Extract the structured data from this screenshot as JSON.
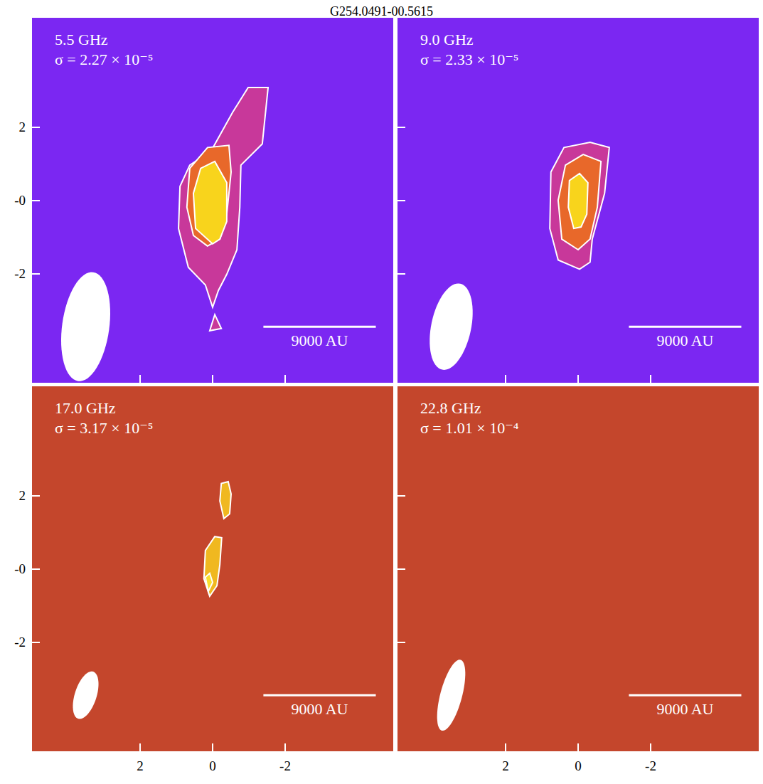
{
  "chart_data": {
    "type": "radio_map",
    "title": "G254.0491-00.5615",
    "xlim": [
      5,
      -5
    ],
    "ylim": [
      -5,
      5
    ],
    "xticks": [
      2,
      0,
      -2
    ],
    "yticks": [
      2,
      {
        "value": 0,
        "label": "-0"
      },
      -2
    ],
    "panels": [
      {
        "label": "5.5 GHz",
        "sigma": {
          "value": 2.27e-05,
          "label": "σ = 2.27 × 10⁻⁵"
        },
        "color": "#7b27f2",
        "tick_labels": "y",
        "beam": {
          "major": 3.0,
          "minor": 1.3,
          "pa": -8
        },
        "scale_bar": {
          "label": "9000 AU",
          "length": 3.1
        },
        "contours": [
          [
            [
              [
                0,
                -2.92
              ],
              [
                0.2,
                -2.31
              ],
              [
                0.67,
                -1.83
              ],
              [
                0.94,
                -0.77
              ],
              [
                0.9,
                0.38
              ],
              [
                0.63,
                0.96
              ],
              [
                0.04,
                1.35
              ],
              [
                -0.55,
                2.4
              ],
              [
                -0.98,
                3.08
              ],
              [
                -1.53,
                3.08
              ],
              [
                -1.37,
                1.54
              ],
              [
                -0.78,
                0.96
              ],
              [
                -0.75,
                -0.19
              ],
              [
                -0.67,
                -1.35
              ],
              [
                -0.39,
                -2.02
              ],
              [
                -0.16,
                -2.46
              ]
            ],
            [
              [
                0.14,
                -1.25
              ],
              [
                0.53,
                -0.96
              ],
              [
                0.71,
                -0.19
              ],
              [
                0.63,
                0.87
              ],
              [
                0.14,
                1.44
              ],
              [
                -0.45,
                1.5
              ],
              [
                -0.51,
                0.77
              ],
              [
                -0.39,
                -0.38
              ],
              [
                -0.2,
                -1.06
              ]
            ],
            [
              [
                0,
                -1.19
              ],
              [
                0.47,
                -0.77
              ],
              [
                0.53,
                0.19
              ],
              [
                0.33,
                0.87
              ],
              [
                -0.06,
                1.06
              ],
              [
                -0.39,
                0.48
              ],
              [
                -0.39,
                -0.58
              ],
              [
                -0.2,
                -1.06
              ]
            ]
          ],
          [
            [
              [
                -0.06,
                -3.12
              ],
              [
                0.08,
                -3.56
              ],
              [
                -0.24,
                -3.5
              ]
            ]
          ]
        ]
      },
      {
        "label": "9.0 GHz",
        "sigma": {
          "value": 2.33e-05,
          "label": "σ = 2.33 × 10⁻⁵"
        },
        "color": "#7b27f2",
        "tick_labels": false,
        "beam": {
          "major": 2.4,
          "minor": 1.1,
          "pa": -12
        },
        "scale_bar": {
          "label": "9000 AU",
          "length": 3.1
        },
        "contours": [
          [
            [
              [
                -0.04,
                -1.88
              ],
              [
                0.55,
                -1.63
              ],
              [
                0.78,
                -0.77
              ],
              [
                0.75,
                0.77
              ],
              [
                0.39,
                1.44
              ],
              [
                -0.33,
                1.58
              ],
              [
                -0.86,
                1.44
              ],
              [
                -0.73,
                0.19
              ],
              [
                -0.39,
                -1.06
              ],
              [
                -0.33,
                -1.69
              ]
            ],
            [
              [
                0,
                -1.35
              ],
              [
                0.45,
                -1.06
              ],
              [
                0.55,
                0
              ],
              [
                0.35,
                0.96
              ],
              [
                -0.14,
                1.25
              ],
              [
                -0.63,
                1.06
              ],
              [
                -0.53,
                -0.19
              ],
              [
                -0.33,
                -1.06
              ]
            ],
            [
              [
                0.12,
                -0.77
              ],
              [
                0.27,
                -0.19
              ],
              [
                0.24,
                0.54
              ],
              [
                -0.04,
                0.73
              ],
              [
                -0.27,
                0.48
              ],
              [
                -0.24,
                -0.38
              ],
              [
                -0.08,
                -0.73
              ]
            ]
          ]
        ]
      },
      {
        "label": "17.0 GHz",
        "sigma": {
          "value": 3.17e-05,
          "label": "σ = 3.17 × 10⁻⁵"
        },
        "color": "#c4462c",
        "beam": {
          "major": 1.35,
          "minor": 0.6,
          "pa": -18
        },
        "scale_bar": {
          "label": "9000 AU",
          "length": 3.1
        },
        "contours": [
          [
            [
              [
                0.08,
                -0.75
              ],
              [
                0.24,
                -0.27
              ],
              [
                0.2,
                0.5
              ],
              [
                -0.06,
                0.88
              ],
              [
                -0.25,
                0.85
              ],
              [
                -0.2,
                0.12
              ],
              [
                -0.12,
                -0.46
              ]
            ],
            [
              [
                0.12,
                -0.62
              ],
              [
                0.2,
                -0.23
              ],
              [
                0.08,
                -0.12
              ],
              [
                0,
                -0.37
              ]
            ]
          ],
          [
            [
              [
                -0.31,
                1.37
              ],
              [
                -0.2,
                1.85
              ],
              [
                -0.24,
                2.33
              ],
              [
                -0.43,
                2.38
              ],
              [
                -0.51,
                2.04
              ],
              [
                -0.47,
                1.5
              ]
            ]
          ]
        ]
      },
      {
        "label": "22.8 GHz",
        "sigma": {
          "value": 0.000101,
          "label": "σ = 1.01 × 10⁻⁴"
        },
        "color": "#c4462c",
        "tick_labels": "x",
        "beam": {
          "major": 2.0,
          "minor": 0.6,
          "pa": -15
        },
        "scale_bar": {
          "label": "9000 AU",
          "length": 3.1
        },
        "contours": []
      }
    ]
  }
}
